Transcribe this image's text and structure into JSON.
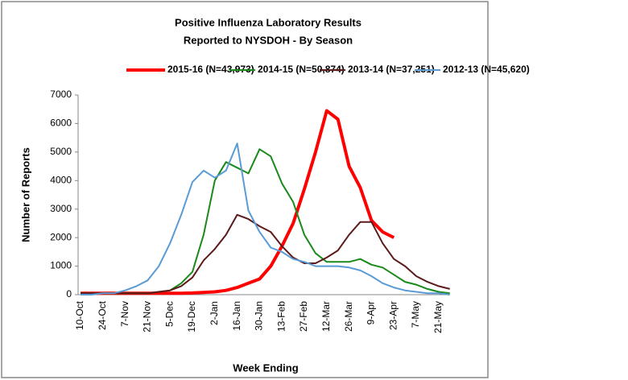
{
  "chart_data": {
    "type": "line",
    "title": [
      "Positive Influenza Laboratory Results",
      "Reported to NYSDOH - By Season"
    ],
    "x_label": "Week Ending",
    "y_label": "Number of Reports",
    "categories": [
      "10-Oct",
      null,
      "24-Oct",
      null,
      "7-Nov",
      null,
      "21-Nov",
      null,
      "5-Dec",
      null,
      "19-Dec",
      null,
      "2-Jan",
      null,
      "16-Jan",
      null,
      "30-Jan",
      null,
      "13-Feb",
      null,
      "27-Feb",
      null,
      "12-Mar",
      null,
      "26-Mar",
      null,
      "9-Apr",
      null,
      "23-Apr",
      null,
      "7-May",
      null,
      "21-May",
      null
    ],
    "ylim": [
      0,
      7000
    ],
    "yticks": [
      0,
      1000,
      2000,
      3000,
      4000,
      5000,
      6000,
      7000
    ],
    "grid": false,
    "legend": "top",
    "series": [
      {
        "name": "2015-16 (N=43,973)",
        "color": "#ff0000",
        "width": 4,
        "values": [
          50,
          50,
          50,
          50,
          50,
          50,
          50,
          50,
          50,
          50,
          60,
          80,
          100,
          150,
          250,
          400,
          550,
          1000,
          1700,
          2500,
          3700,
          5000,
          6450,
          6150,
          4500,
          3750,
          2600,
          2200,
          2000,
          null,
          null,
          null,
          null,
          null
        ]
      },
      {
        "name": "2014-15 (N=50,874)",
        "color": "#1a8a1a",
        "width": 2,
        "values": [
          50,
          50,
          50,
          50,
          50,
          50,
          50,
          100,
          150,
          400,
          800,
          2100,
          4000,
          4650,
          4450,
          4250,
          5100,
          4850,
          3900,
          3250,
          2100,
          1450,
          1150,
          1150,
          1150,
          1250,
          1050,
          950,
          700,
          450,
          350,
          200,
          100,
          50
        ]
      },
      {
        "name": "2013-14 (N=37,251)",
        "color": "#5c1a1a",
        "width": 2,
        "values": [
          50,
          50,
          50,
          50,
          50,
          50,
          50,
          100,
          150,
          300,
          600,
          1200,
          1600,
          2100,
          2800,
          2650,
          2400,
          2200,
          1700,
          1300,
          1100,
          1100,
          1300,
          1550,
          2100,
          2550,
          2550,
          1800,
          1250,
          1000,
          650,
          450,
          300,
          200
        ]
      },
      {
        "name": "2012-13 (N=45,620)",
        "color": "#5b9bd5",
        "width": 2,
        "values": [
          0,
          0,
          50,
          50,
          150,
          300,
          500,
          1000,
          1800,
          2800,
          3950,
          4350,
          4100,
          4350,
          5300,
          2950,
          2200,
          1650,
          1500,
          1250,
          1150,
          1000,
          1000,
          1000,
          950,
          850,
          650,
          400,
          250,
          150,
          100,
          50,
          50,
          0
        ]
      }
    ]
  }
}
